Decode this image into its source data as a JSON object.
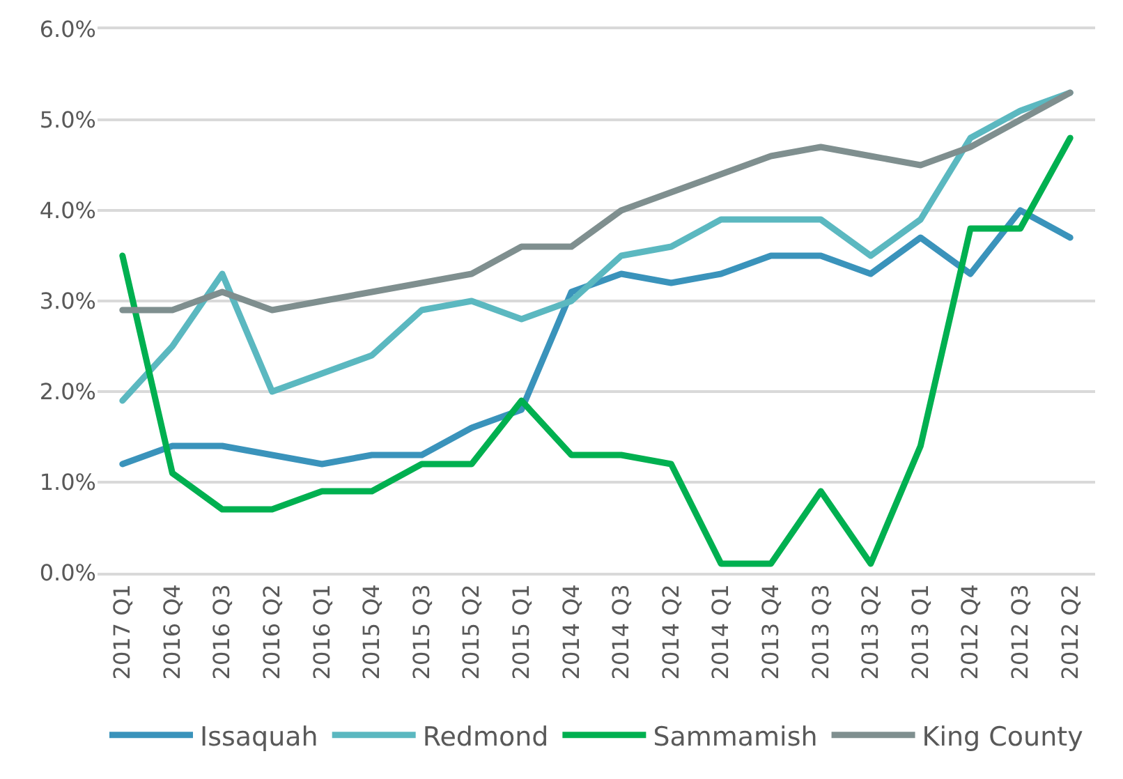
{
  "chart_data": {
    "type": "line",
    "categories": [
      "2017 Q1",
      "2016 Q4",
      "2016 Q3",
      "2016 Q2",
      "2016 Q1",
      "2015 Q4",
      "2015 Q3",
      "2015 Q2",
      "2015 Q1",
      "2014 Q4",
      "2014 Q3",
      "2014 Q2",
      "2014 Q1",
      "2013 Q4",
      "2013 Q3",
      "2013 Q2",
      "2013 Q1",
      "2012 Q4",
      "2012 Q3",
      "2012 Q2"
    ],
    "series": [
      {
        "name": "Issaquah",
        "color": "#3a93bb",
        "values": [
          1.2,
          1.4,
          1.4,
          1.3,
          1.2,
          1.3,
          1.3,
          1.6,
          1.8,
          3.1,
          3.3,
          3.2,
          3.3,
          3.5,
          3.5,
          3.3,
          3.7,
          3.3,
          4.0,
          3.7
        ]
      },
      {
        "name": "Redmond",
        "color": "#5bb8c0",
        "values": [
          1.9,
          2.5,
          3.3,
          2.0,
          2.2,
          2.4,
          2.9,
          3.0,
          2.8,
          3.0,
          3.5,
          3.6,
          3.9,
          3.9,
          3.9,
          3.5,
          3.9,
          4.8,
          5.1,
          5.3
        ]
      },
      {
        "name": "Sammamish",
        "color": "#00b050",
        "values": [
          3.5,
          1.1,
          0.7,
          0.7,
          0.9,
          0.9,
          1.2,
          1.2,
          1.9,
          1.3,
          1.3,
          1.2,
          0.1,
          0.1,
          0.9,
          0.1,
          1.4,
          3.8,
          3.8,
          4.8
        ]
      },
      {
        "name": "King County",
        "color": "#7f8f8f",
        "values": [
          2.9,
          2.9,
          3.1,
          2.9,
          3.0,
          3.1,
          3.2,
          3.3,
          3.6,
          3.6,
          4.0,
          4.2,
          4.4,
          4.6,
          4.7,
          4.6,
          4.5,
          4.7,
          5.0,
          5.3
        ]
      }
    ],
    "ylim": [
      0,
      6
    ],
    "yticks": [
      {
        "value": 0,
        "label": "0.0%"
      },
      {
        "value": 1,
        "label": "1.0%"
      },
      {
        "value": 2,
        "label": "2.0%"
      },
      {
        "value": 3,
        "label": "3.0%"
      },
      {
        "value": 4,
        "label": "4.0%"
      },
      {
        "value": 5,
        "label": "5.0%"
      },
      {
        "value": 6,
        "label": "6.0%"
      }
    ],
    "grid": "y",
    "legend": "bottom",
    "marker": "none",
    "line_style": "solid"
  }
}
